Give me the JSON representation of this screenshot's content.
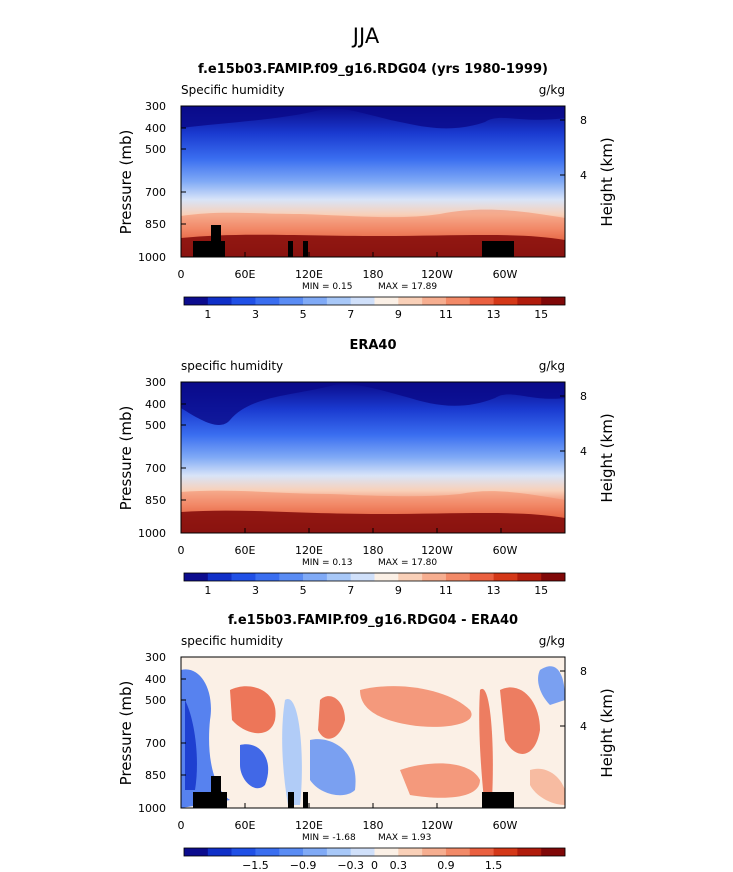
{
  "page": {
    "season_title": "JJA"
  },
  "panels": [
    {
      "title": "f.e15b03.FAMIP.f09_g16.RDG04 (yrs 1980-1999)",
      "left_label": "Specific humidity",
      "units": "g/kg",
      "min_text": "MIN =    0.15",
      "max_text": "MAX =   17.89"
    },
    {
      "title": "ERA40",
      "left_label": "specific humidity",
      "units": "g/kg",
      "min_text": "MIN =    0.13",
      "max_text": "MAX =   17.80"
    },
    {
      "title": "f.e15b03.FAMIP.f09_g16.RDG04 - ERA40",
      "left_label": "specific humidity",
      "units": "g/kg",
      "min_text": "MIN =  -1.68",
      "max_text": "MAX =   1.93"
    }
  ],
  "axes": {
    "ylabel": "Pressure (mb)",
    "y2label": "Height (km)",
    "pressure_ticks": [
      "300",
      "400",
      "500",
      "700",
      "850",
      "1000"
    ],
    "height_ticks": [
      "8",
      "4"
    ],
    "lon_ticks": [
      "0",
      "60E",
      "120E",
      "180",
      "120W",
      "60W"
    ]
  },
  "colorbars": {
    "abs_labels": [
      "1",
      "3",
      "5",
      "7",
      "9",
      "11",
      "13",
      "15"
    ],
    "diff_labels": [
      "−1.5",
      "−0.9",
      "−0.3",
      "0",
      "0.3",
      "0.9",
      "1.5"
    ],
    "colors": [
      "#0c0c8e",
      "#1030c8",
      "#2050e6",
      "#3a6ef0",
      "#5a8cf4",
      "#80aaf6",
      "#a8c8f8",
      "#d0e0fa",
      "#fbf0e6",
      "#f9d0b8",
      "#f6ae90",
      "#f28a68",
      "#ea6040",
      "#d43818",
      "#b01c0c",
      "#800808"
    ]
  },
  "chart_data": [
    {
      "type": "heatmap",
      "title": "f.e15b03.FAMIP.f09_g16.RDG04 (yrs 1980-1999)",
      "variable": "Specific humidity",
      "units": "g/kg",
      "xlabel": "",
      "ylabel": "Pressure (mb)",
      "y2label": "Height (km)",
      "x_ticks": [
        "0",
        "60E",
        "120E",
        "180",
        "120W",
        "60W"
      ],
      "y_ticks": [
        300,
        400,
        500,
        700,
        850,
        1000
      ],
      "contour_levels": [
        1,
        2,
        3,
        4,
        5,
        6,
        7,
        8,
        9,
        10,
        11,
        12,
        13,
        14,
        15
      ],
      "min": 0.15,
      "max": 17.89
    },
    {
      "type": "heatmap",
      "title": "ERA40",
      "variable": "specific humidity",
      "units": "g/kg",
      "xlabel": "",
      "ylabel": "Pressure (mb)",
      "y2label": "Height (km)",
      "x_ticks": [
        "0",
        "60E",
        "120E",
        "180",
        "120W",
        "60W"
      ],
      "y_ticks": [
        300,
        400,
        500,
        700,
        850,
        1000
      ],
      "contour_levels": [
        1,
        2,
        3,
        4,
        5,
        6,
        7,
        8,
        9,
        10,
        11,
        12,
        13,
        14,
        15
      ],
      "min": 0.13,
      "max": 17.8
    },
    {
      "type": "heatmap",
      "title": "f.e15b03.FAMIP.f09_g16.RDG04 - ERA40",
      "variable": "specific humidity",
      "units": "g/kg",
      "xlabel": "",
      "ylabel": "Pressure (mb)",
      "y2label": "Height (km)",
      "x_ticks": [
        "0",
        "60E",
        "120E",
        "180",
        "120W",
        "60W"
      ],
      "y_ticks": [
        300,
        400,
        500,
        700,
        850,
        1000
      ],
      "contour_levels": [
        -1.5,
        -1.2,
        -0.9,
        -0.6,
        -0.3,
        -0.1,
        0,
        0.1,
        0.3,
        0.6,
        0.9,
        1.2,
        1.5
      ],
      "min": -1.68,
      "max": 1.93
    }
  ]
}
